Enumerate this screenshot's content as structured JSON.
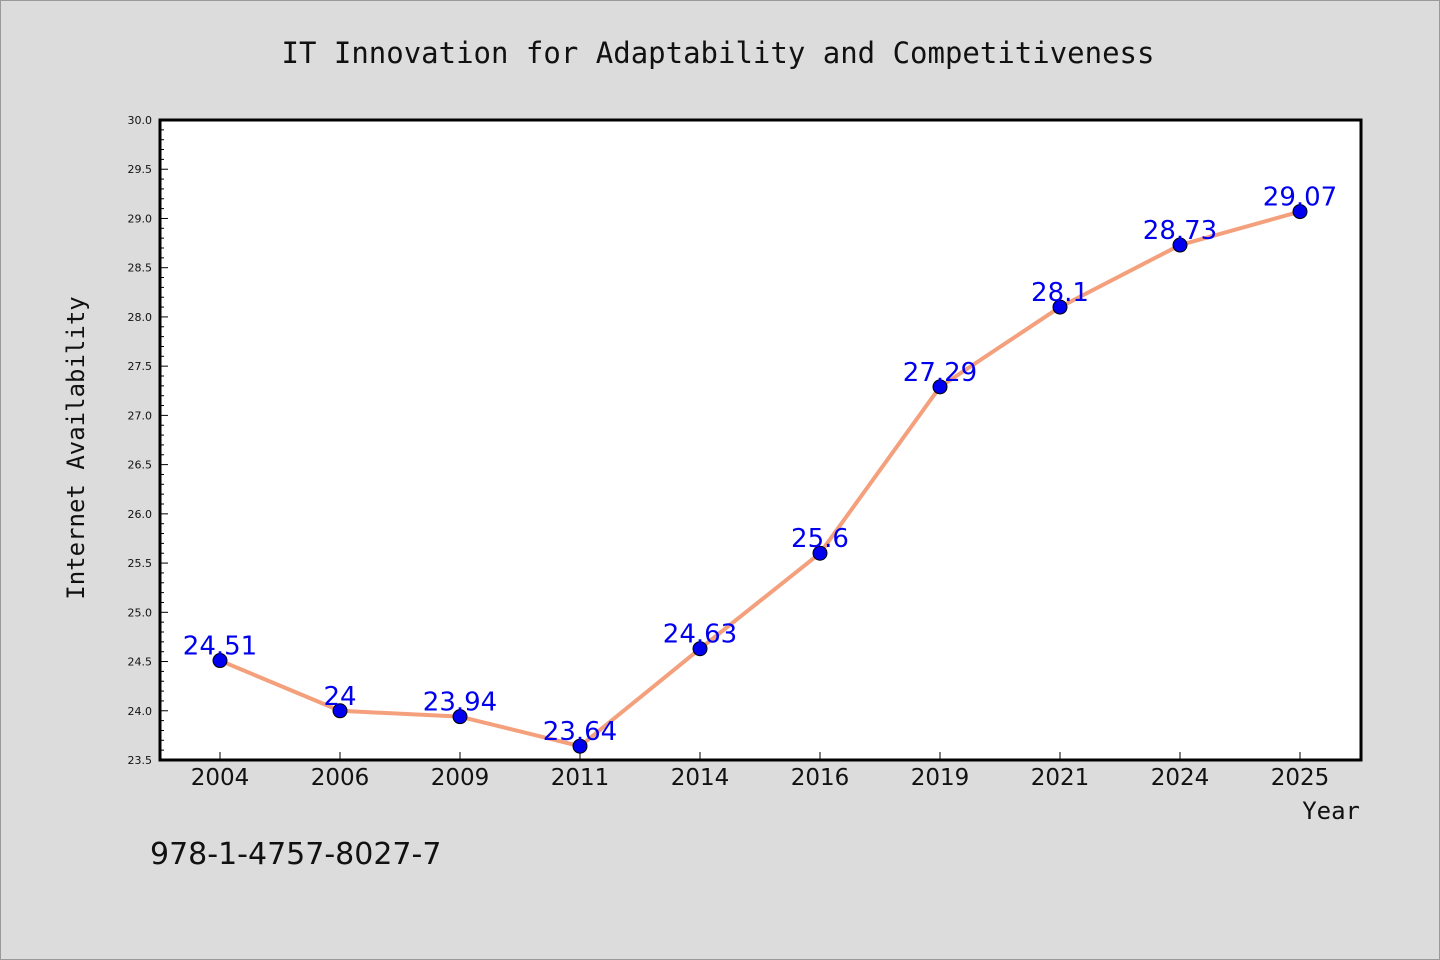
{
  "chart_data": {
    "type": "line",
    "title": "IT Innovation for Adaptability and Competitiveness",
    "xlabel": "Year",
    "ylabel": "Internet Availability",
    "categories": [
      "2004",
      "2006",
      "2009",
      "2011",
      "2014",
      "2016",
      "2019",
      "2021",
      "2024",
      "2025"
    ],
    "values": [
      24.51,
      24,
      23.94,
      23.64,
      24.63,
      25.6,
      27.29,
      28.1,
      28.73,
      29.07
    ],
    "data_labels": [
      "24.51",
      "24",
      "23.94",
      "23.64",
      "24.63",
      "25.6",
      "27.29",
      "28.1",
      "28.73",
      "29.07"
    ],
    "ylim": [
      23.5,
      30.0
    ],
    "yticks": [
      "23.5",
      "24.0",
      "24.5",
      "25.0",
      "25.5",
      "26.0",
      "26.5",
      "27.0",
      "27.5",
      "28.0",
      "28.5",
      "29.0",
      "29.5",
      "30.0"
    ],
    "grid": false,
    "line_color": "#f4a07c",
    "marker_color": "#0000ee",
    "label_color": "#0000ee"
  },
  "footer": {
    "isbn": "978-1-4757-8027-7"
  }
}
